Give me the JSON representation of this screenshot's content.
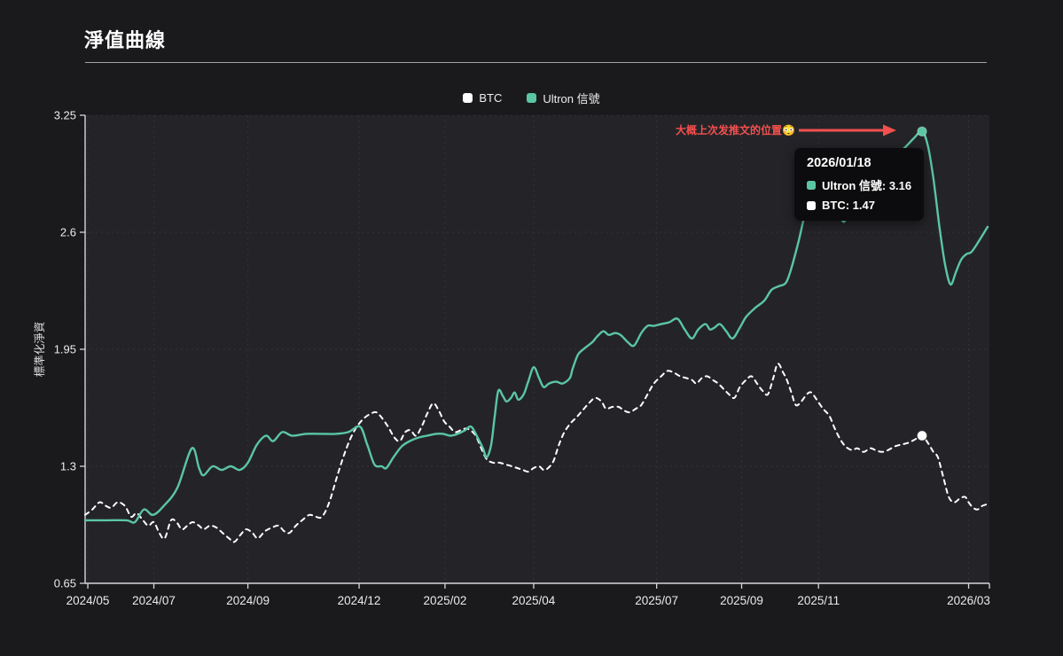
{
  "page": {
    "title": "淨值曲線"
  },
  "colors": {
    "btc": "#ffffff",
    "ultron": "#5bc6a3",
    "annotation_red": "#f4504e",
    "axis": "#d4d6d9",
    "tick_text": "#ebebed"
  },
  "legend": {
    "items": [
      {
        "label": "BTC",
        "color": "#ffffff"
      },
      {
        "label": "Ultron 信號",
        "color": "#5bc6a3"
      }
    ]
  },
  "annotation": {
    "text": "大概上次发推文的位置😳"
  },
  "tooltip": {
    "date": "2026/01/18",
    "rows": [
      {
        "text": "Ultron 信號: 3.16",
        "color": "#5bc6a3"
      },
      {
        "text": "BTC: 1.47",
        "color": "#ffffff"
      }
    ]
  },
  "chart_data": {
    "type": "line",
    "title": "淨值曲線",
    "xlabel": "",
    "ylabel": "標準化淨資",
    "ylim": [
      0.65,
      3.25
    ],
    "grid": true,
    "legend_position": "top-center",
    "y_ticks": [
      "3.25",
      "2.6",
      "1.95",
      "1.3",
      "0.65"
    ],
    "y_tick_values": [
      3.25,
      2.6,
      1.95,
      1.3,
      0.65
    ],
    "x_ticks": [
      {
        "label": "2024/05",
        "x": 0.3
      },
      {
        "label": "2024/07",
        "x": 7.6
      },
      {
        "label": "2024/09",
        "x": 18.0
      },
      {
        "label": "2024/12",
        "x": 30.3
      },
      {
        "label": "2025/02",
        "x": 39.8
      },
      {
        "label": "2025/04",
        "x": 49.6
      },
      {
        "label": "2025/07",
        "x": 63.2
      },
      {
        "label": "2025/09",
        "x": 72.6
      },
      {
        "label": "2025/11",
        "x": 81.1
      },
      {
        "label": "2026/03",
        "x": 97.7
      }
    ],
    "hover": {
      "date": "2026/01/18",
      "ultron_value": 3.16,
      "btc_value": 1.47,
      "x": 92.55
    },
    "series": [
      {
        "name": "BTC",
        "color": "#ffffff",
        "style": "dashed",
        "points": [
          [
            0,
            1.03
          ],
          [
            0.8,
            1.06
          ],
          [
            1.6,
            1.1
          ],
          [
            2.3,
            1.08
          ],
          [
            2.9,
            1.07
          ],
          [
            3.6,
            1.1
          ],
          [
            4.4,
            1.08
          ],
          [
            5.1,
            1.02
          ],
          [
            5.7,
            1.04
          ],
          [
            6.4,
            1.0
          ],
          [
            7.0,
            0.97
          ],
          [
            7.6,
            0.99
          ],
          [
            8.2,
            0.93
          ],
          [
            8.8,
            0.9
          ],
          [
            9.5,
            1.0
          ],
          [
            10.1,
            0.99
          ],
          [
            10.7,
            0.95
          ],
          [
            11.3,
            0.97
          ],
          [
            11.9,
            0.99
          ],
          [
            12.6,
            0.97
          ],
          [
            13.1,
            0.95
          ],
          [
            13.8,
            0.97
          ],
          [
            14.5,
            0.96
          ],
          [
            15.2,
            0.93
          ],
          [
            15.9,
            0.9
          ],
          [
            16.5,
            0.88
          ],
          [
            17.2,
            0.92
          ],
          [
            17.8,
            0.95
          ],
          [
            18.5,
            0.93
          ],
          [
            19.1,
            0.9
          ],
          [
            19.9,
            0.94
          ],
          [
            20.7,
            0.96
          ],
          [
            21.4,
            0.97
          ],
          [
            22.0,
            0.94
          ],
          [
            22.6,
            0.93
          ],
          [
            23.3,
            0.97
          ],
          [
            24.0,
            1.0
          ],
          [
            24.8,
            1.03
          ],
          [
            25.5,
            1.02
          ],
          [
            26.2,
            1.02
          ],
          [
            27.0,
            1.1
          ],
          [
            27.9,
            1.25
          ],
          [
            28.9,
            1.4
          ],
          [
            29.8,
            1.5
          ],
          [
            30.7,
            1.56
          ],
          [
            31.5,
            1.59
          ],
          [
            32.2,
            1.6
          ],
          [
            32.8,
            1.57
          ],
          [
            33.5,
            1.52
          ],
          [
            34.2,
            1.46
          ],
          [
            34.8,
            1.44
          ],
          [
            35.4,
            1.49
          ],
          [
            36.0,
            1.5
          ],
          [
            36.6,
            1.47
          ],
          [
            37.3,
            1.53
          ],
          [
            37.9,
            1.6
          ],
          [
            38.5,
            1.65
          ],
          [
            39.1,
            1.61
          ],
          [
            39.7,
            1.55
          ],
          [
            40.3,
            1.52
          ],
          [
            40.9,
            1.49
          ],
          [
            41.5,
            1.5
          ],
          [
            42.1,
            1.51
          ],
          [
            42.6,
            1.5
          ],
          [
            43.2,
            1.47
          ],
          [
            43.8,
            1.4
          ],
          [
            44.4,
            1.34
          ],
          [
            45.1,
            1.32
          ],
          [
            45.8,
            1.32
          ],
          [
            46.5,
            1.31
          ],
          [
            47.2,
            1.3
          ],
          [
            47.8,
            1.29
          ],
          [
            48.4,
            1.28
          ],
          [
            49.0,
            1.27
          ],
          [
            49.6,
            1.29
          ],
          [
            50.2,
            1.3
          ],
          [
            50.7,
            1.28
          ],
          [
            51.2,
            1.29
          ],
          [
            51.8,
            1.33
          ],
          [
            52.4,
            1.42
          ],
          [
            53.0,
            1.49
          ],
          [
            53.7,
            1.54
          ],
          [
            54.3,
            1.57
          ],
          [
            55.0,
            1.61
          ],
          [
            55.7,
            1.65
          ],
          [
            56.4,
            1.68
          ],
          [
            57.1,
            1.66
          ],
          [
            57.6,
            1.62
          ],
          [
            58.3,
            1.63
          ],
          [
            59.0,
            1.63
          ],
          [
            59.6,
            1.61
          ],
          [
            60.2,
            1.6
          ],
          [
            60.9,
            1.62
          ],
          [
            61.5,
            1.64
          ],
          [
            62.2,
            1.7
          ],
          [
            62.9,
            1.76
          ],
          [
            63.7,
            1.8
          ],
          [
            64.4,
            1.83
          ],
          [
            65.1,
            1.82
          ],
          [
            65.8,
            1.8
          ],
          [
            66.5,
            1.79
          ],
          [
            67.1,
            1.78
          ],
          [
            67.6,
            1.76
          ],
          [
            68.2,
            1.79
          ],
          [
            68.8,
            1.8
          ],
          [
            69.4,
            1.78
          ],
          [
            70.0,
            1.76
          ],
          [
            70.6,
            1.73
          ],
          [
            71.2,
            1.7
          ],
          [
            71.8,
            1.68
          ],
          [
            72.4,
            1.74
          ],
          [
            73.1,
            1.78
          ],
          [
            73.7,
            1.8
          ],
          [
            74.3,
            1.76
          ],
          [
            74.9,
            1.72
          ],
          [
            75.5,
            1.7
          ],
          [
            76.1,
            1.79
          ],
          [
            76.6,
            1.87
          ],
          [
            77.2,
            1.82
          ],
          [
            77.6,
            1.78
          ],
          [
            78.1,
            1.71
          ],
          [
            78.6,
            1.64
          ],
          [
            79.2,
            1.66
          ],
          [
            79.8,
            1.7
          ],
          [
            80.3,
            1.71
          ],
          [
            80.9,
            1.67
          ],
          [
            81.6,
            1.62
          ],
          [
            82.3,
            1.58
          ],
          [
            82.9,
            1.51
          ],
          [
            83.5,
            1.45
          ],
          [
            84.1,
            1.41
          ],
          [
            84.8,
            1.39
          ],
          [
            85.4,
            1.4
          ],
          [
            86.1,
            1.38
          ],
          [
            86.8,
            1.4
          ],
          [
            87.4,
            1.39
          ],
          [
            88.1,
            1.38
          ],
          [
            88.8,
            1.39
          ],
          [
            89.5,
            1.41
          ],
          [
            90.2,
            1.42
          ],
          [
            91.0,
            1.43
          ],
          [
            91.8,
            1.45
          ],
          [
            92.55,
            1.47
          ],
          [
            93.2,
            1.43
          ],
          [
            93.8,
            1.38
          ],
          [
            94.3,
            1.35
          ],
          [
            94.9,
            1.24
          ],
          [
            95.5,
            1.13
          ],
          [
            96.1,
            1.1
          ],
          [
            96.7,
            1.12
          ],
          [
            97.3,
            1.13
          ],
          [
            97.7,
            1.1
          ],
          [
            98.2,
            1.07
          ],
          [
            98.7,
            1.06
          ],
          [
            99.2,
            1.08
          ],
          [
            99.8,
            1.09
          ]
        ]
      },
      {
        "name": "Ultron 信號",
        "color": "#5bc6a3",
        "style": "solid",
        "points": [
          [
            0,
            1.0
          ],
          [
            2.4,
            1.0
          ],
          [
            4.6,
            1.0
          ],
          [
            5.5,
            0.99
          ],
          [
            6.5,
            1.06
          ],
          [
            7.5,
            1.03
          ],
          [
            8.7,
            1.08
          ],
          [
            10.2,
            1.18
          ],
          [
            11.8,
            1.4
          ],
          [
            12.6,
            1.29
          ],
          [
            13.1,
            1.25
          ],
          [
            14.1,
            1.3
          ],
          [
            15.1,
            1.28
          ],
          [
            16.1,
            1.3
          ],
          [
            17.1,
            1.28
          ],
          [
            18.0,
            1.32
          ],
          [
            19.0,
            1.42
          ],
          [
            20.0,
            1.47
          ],
          [
            20.8,
            1.44
          ],
          [
            21.8,
            1.49
          ],
          [
            22.9,
            1.47
          ],
          [
            24.4,
            1.48
          ],
          [
            25.9,
            1.48
          ],
          [
            27.7,
            1.48
          ],
          [
            29.1,
            1.49
          ],
          [
            30.4,
            1.52
          ],
          [
            31.2,
            1.42
          ],
          [
            32.0,
            1.31
          ],
          [
            32.8,
            1.3
          ],
          [
            33.3,
            1.29
          ],
          [
            34.1,
            1.35
          ],
          [
            35.0,
            1.41
          ],
          [
            35.9,
            1.44
          ],
          [
            36.9,
            1.46
          ],
          [
            37.8,
            1.47
          ],
          [
            38.8,
            1.48
          ],
          [
            39.6,
            1.48
          ],
          [
            40.4,
            1.47
          ],
          [
            41.2,
            1.48
          ],
          [
            42.0,
            1.5
          ],
          [
            42.7,
            1.52
          ],
          [
            43.4,
            1.46
          ],
          [
            44.0,
            1.4
          ],
          [
            44.4,
            1.35
          ],
          [
            44.9,
            1.42
          ],
          [
            45.3,
            1.58
          ],
          [
            45.7,
            1.72
          ],
          [
            46.2,
            1.69
          ],
          [
            46.6,
            1.66
          ],
          [
            47.1,
            1.68
          ],
          [
            47.5,
            1.71
          ],
          [
            47.9,
            1.67
          ],
          [
            48.5,
            1.7
          ],
          [
            49.0,
            1.77
          ],
          [
            49.6,
            1.85
          ],
          [
            50.2,
            1.79
          ],
          [
            50.7,
            1.74
          ],
          [
            51.3,
            1.76
          ],
          [
            52.1,
            1.77
          ],
          [
            52.8,
            1.76
          ],
          [
            53.6,
            1.79
          ],
          [
            53.9,
            1.84
          ],
          [
            54.5,
            1.92
          ],
          [
            55.1,
            1.95
          ],
          [
            56.1,
            1.99
          ],
          [
            56.6,
            2.02
          ],
          [
            57.3,
            2.05
          ],
          [
            57.9,
            2.03
          ],
          [
            58.6,
            2.04
          ],
          [
            59.2,
            2.03
          ],
          [
            60.0,
            1.99
          ],
          [
            60.7,
            1.97
          ],
          [
            61.5,
            2.04
          ],
          [
            62.2,
            2.08
          ],
          [
            62.9,
            2.08
          ],
          [
            63.7,
            2.09
          ],
          [
            64.6,
            2.1
          ],
          [
            65.5,
            2.12
          ],
          [
            66.3,
            2.06
          ],
          [
            67.1,
            2.01
          ],
          [
            67.8,
            2.06
          ],
          [
            68.6,
            2.09
          ],
          [
            69.1,
            2.06
          ],
          [
            69.6,
            2.07
          ],
          [
            70.2,
            2.09
          ],
          [
            70.9,
            2.05
          ],
          [
            71.6,
            2.01
          ],
          [
            72.4,
            2.07
          ],
          [
            73.1,
            2.13
          ],
          [
            74.1,
            2.18
          ],
          [
            75.1,
            2.22
          ],
          [
            75.9,
            2.28
          ],
          [
            76.7,
            2.3
          ],
          [
            77.5,
            2.32
          ],
          [
            78.1,
            2.4
          ],
          [
            78.9,
            2.55
          ],
          [
            79.6,
            2.7
          ],
          [
            80.5,
            2.85
          ],
          [
            81.4,
            2.95
          ],
          [
            82.2,
            3.0
          ],
          [
            83.0,
            2.8
          ],
          [
            83.8,
            2.66
          ],
          [
            84.5,
            2.72
          ],
          [
            85.5,
            2.83
          ],
          [
            86.7,
            2.92
          ],
          [
            87.8,
            2.99
          ],
          [
            89.1,
            3.03
          ],
          [
            90.4,
            3.06
          ],
          [
            91.6,
            3.12
          ],
          [
            92.55,
            3.16
          ],
          [
            93.2,
            3.08
          ],
          [
            93.8,
            2.9
          ],
          [
            94.5,
            2.62
          ],
          [
            95.1,
            2.42
          ],
          [
            95.7,
            2.31
          ],
          [
            96.3,
            2.38
          ],
          [
            96.9,
            2.45
          ],
          [
            97.5,
            2.48
          ],
          [
            98.0,
            2.49
          ],
          [
            98.7,
            2.54
          ],
          [
            99.8,
            2.63
          ]
        ]
      }
    ],
    "markers": [
      {
        "series": "Ultron 信號",
        "x": 92.55,
        "value": 3.16,
        "color": "#5bc6a3"
      },
      {
        "series": "BTC",
        "x": 92.55,
        "value": 1.47,
        "color": "#ffffff"
      }
    ]
  }
}
